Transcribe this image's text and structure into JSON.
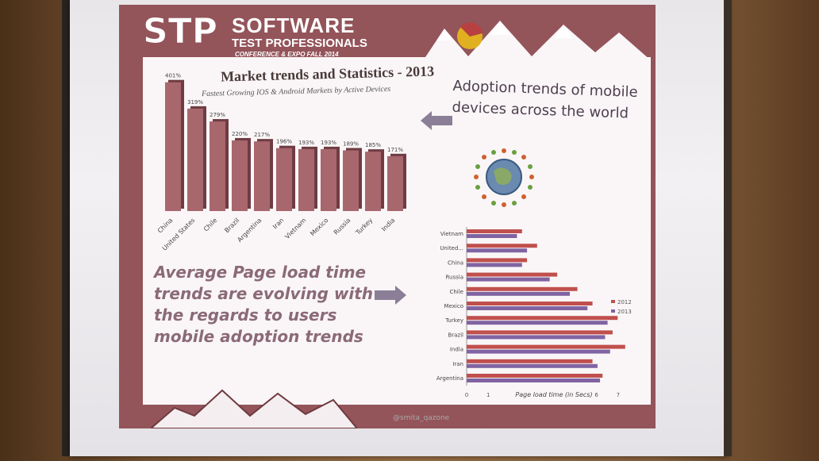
{
  "logo": {
    "mark": "STP",
    "name_line1": "SOFTWARE",
    "name_line2": "TEST PROFESSIONALS",
    "name_line3": "CONFERENCE & EXPO FALL 2014"
  },
  "slide": {
    "title": "Market trends and Statistics - 2013",
    "subtitle": "Fastest Growing IOS & Android Markets by Active Devices",
    "adoption_text": "Adoption trends of mobile devices across the world",
    "page_load_text": "Average Page load time trends are evolving with the regards to users mobile adoption trends",
    "handle": "@smita_qazone"
  },
  "chart_data": [
    {
      "type": "bar",
      "title": "Fastest Growing IOS & Android Markets by Active Devices",
      "categories": [
        "China",
        "United States",
        "Chile",
        "Brazil",
        "Argentina",
        "Iran",
        "Vietnam",
        "Mexico",
        "Russia",
        "Turkey",
        "India"
      ],
      "values": [
        401,
        319,
        279,
        220,
        217,
        196,
        193,
        193,
        189,
        185,
        171
      ],
      "data_labels": [
        "401%",
        "319%",
        "279%",
        "220%",
        "217%",
        "196%",
        "193%",
        "193%",
        "189%",
        "185%",
        "171%"
      ],
      "ylim": [
        0,
        420
      ]
    },
    {
      "type": "bar",
      "orientation": "horizontal",
      "categories": [
        "Vietnam",
        "United...",
        "China",
        "Russia",
        "Chile",
        "Mexico",
        "Turkey",
        "Brazil",
        "India",
        "Iran",
        "Argentina"
      ],
      "series": [
        {
          "name": "2012",
          "color": "#c0504d",
          "values": [
            2.2,
            2.8,
            2.4,
            3.6,
            4.4,
            5.0,
            6.0,
            5.8,
            6.3,
            5.0,
            5.4
          ]
        },
        {
          "name": "2013",
          "color": "#8064a2",
          "values": [
            2.0,
            2.4,
            2.2,
            3.3,
            4.1,
            4.8,
            5.6,
            5.5,
            5.7,
            5.2,
            5.3
          ]
        }
      ],
      "xlabel": "Page load time (in Secs)",
      "xticks": [
        "0",
        "1",
        "6",
        "7"
      ],
      "xlim": [
        0,
        7
      ]
    }
  ]
}
